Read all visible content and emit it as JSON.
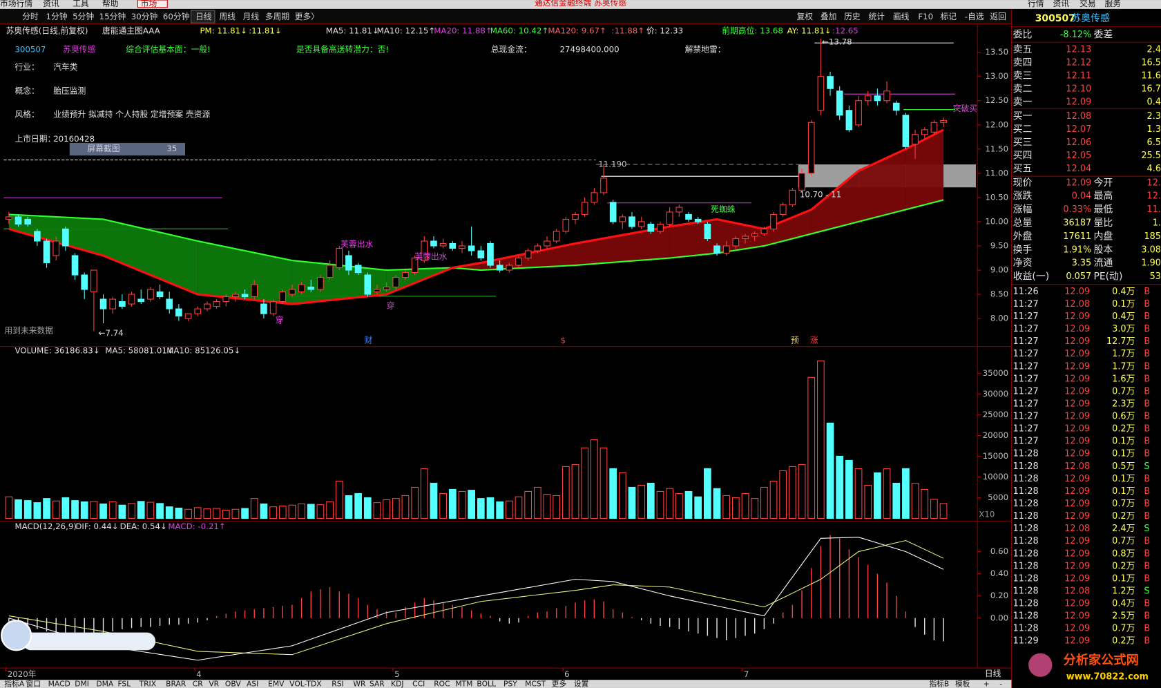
{
  "window": {
    "menu": [
      "市场行情",
      "资讯",
      "工具",
      "帮助",
      "市场"
    ],
    "title": "通达信金融终端 苏奥传感",
    "tabs": [
      "行情",
      "资讯",
      "交易",
      "服务"
    ]
  },
  "toolbar": {
    "periods": [
      "分时",
      "1分钟",
      "5分钟",
      "15分钟",
      "30分钟",
      "60分钟",
      "日线",
      "周线",
      "月线",
      "多周期",
      "更多〉"
    ],
    "tools": [
      "复权",
      "叠加",
      "历史",
      "统计",
      "画线",
      "F10",
      "标记",
      "-自选",
      "返回"
    ]
  },
  "info_bar": [
    "苏奥传感(日线,前复权)",
    "唐能通主图AAA",
    "PM: 11.81↓",
    ":11.81↓",
    "MA5: 11.81↓",
    "MA10: 12.15↑",
    "MA20: 11.88↑",
    "MA60: 10.42↑",
    "MA120: 9.67↑",
    ":11.88↑",
    "价: 12.33",
    "前期高位: 13.68",
    "AY: 11.81↓",
    ":12.65"
  ],
  "stock_info": {
    "code": "300507",
    "name": "苏奥传感",
    "assessment": "综合评估基本面：一般!",
    "potential": "是否具备高送转潜力：否!",
    "cashflow_label": "总现金流：",
    "cashflow": "27498400.000",
    "unlock_label": "解禁地雷：",
    "industry_label": "行业：",
    "industry": "汽车类",
    "concept_label": "概念：",
    "concept": "胎压监测",
    "style_label": "风格：",
    "style": "业绩预升 拟减持 个人持股 定增预案 壳资源",
    "listing_label": "上市日期：",
    "listing": "20160428",
    "screenshot_label": "屏幕截图",
    "screenshot_count": "35"
  },
  "price_chart": {
    "type": "candlestick",
    "ylim": [
      7.42,
      14.09
    ],
    "yticks": [
      {
        "value": 8,
        "label": "8.00"
      },
      {
        "value": 8.5,
        "label": "8.50"
      },
      {
        "value": 9,
        "label": "9.00"
      },
      {
        "value": 9.5,
        "label": "9.50"
      },
      {
        "value": 10,
        "label": "10.00"
      },
      {
        "value": 10.5,
        "label": "10.50"
      },
      {
        "value": 11,
        "label": "11.00"
      },
      {
        "value": 11.5,
        "label": "11.50"
      },
      {
        "value": 12,
        "label": "12.00"
      },
      {
        "value": 12.5,
        "label": "12.50"
      },
      {
        "value": 13,
        "label": "13.00"
      },
      {
        "value": 13.5,
        "label": "13.50"
      }
    ],
    "up_color": "#ff4040",
    "down_color": "#54ffff",
    "candles": [
      [
        10.05,
        10.2,
        9.95,
        10.1
      ],
      [
        10.1,
        10.15,
        9.9,
        9.95
      ],
      [
        10.05,
        10.1,
        9.9,
        9.95
      ],
      [
        9.8,
        9.85,
        9.5,
        9.6
      ],
      [
        9.6,
        9.65,
        9.05,
        9.15
      ],
      [
        9.3,
        9.7,
        9.2,
        9.6
      ],
      [
        9.85,
        9.9,
        9.4,
        9.5
      ],
      [
        9.3,
        9.35,
        8.8,
        8.9
      ],
      [
        8.9,
        8.95,
        8.4,
        8.6
      ],
      [
        8.55,
        9.0,
        7.74,
        9.0
      ],
      [
        8.4,
        8.5,
        7.9,
        8.2
      ],
      [
        8.2,
        8.45,
        8.1,
        8.4
      ],
      [
        8.35,
        8.5,
        8.2,
        8.25
      ],
      [
        8.3,
        8.55,
        8.25,
        8.5
      ],
      [
        8.4,
        8.6,
        8.3,
        8.35
      ],
      [
        8.4,
        8.65,
        8.35,
        8.6
      ],
      [
        8.55,
        8.7,
        8.4,
        8.45
      ],
      [
        8.4,
        8.55,
        8.1,
        8.2
      ],
      [
        8.2,
        8.3,
        7.95,
        8.05
      ],
      [
        8.0,
        8.1,
        7.95,
        8.1
      ],
      [
        8.1,
        8.25,
        8.05,
        8.2
      ],
      [
        8.2,
        8.35,
        8.15,
        8.3
      ],
      [
        8.25,
        8.4,
        8.2,
        8.35
      ],
      [
        8.35,
        8.5,
        8.25,
        8.45
      ],
      [
        8.45,
        8.55,
        8.35,
        8.5
      ],
      [
        8.5,
        8.6,
        8.4,
        8.45
      ],
      [
        8.45,
        8.8,
        8.4,
        8.7
      ],
      [
        8.3,
        8.4,
        8.0,
        8.1
      ],
      [
        8.1,
        8.4,
        8.05,
        8.35
      ],
      [
        8.35,
        8.6,
        8.3,
        8.55
      ],
      [
        8.5,
        8.7,
        8.45,
        8.6
      ],
      [
        8.55,
        8.75,
        8.5,
        8.7
      ],
      [
        8.65,
        8.8,
        8.55,
        8.6
      ],
      [
        8.6,
        8.9,
        8.55,
        8.85
      ],
      [
        8.85,
        9.2,
        8.8,
        9.1
      ],
      [
        9.05,
        9.5,
        9.0,
        9.45
      ],
      [
        9.3,
        9.4,
        8.9,
        9.0
      ],
      [
        9.1,
        9.15,
        8.9,
        8.95
      ],
      [
        8.9,
        8.95,
        8.45,
        8.5
      ],
      [
        8.55,
        8.7,
        8.5,
        8.6
      ],
      [
        8.6,
        8.75,
        8.55,
        8.65
      ],
      [
        8.65,
        8.9,
        8.6,
        8.85
      ],
      [
        8.85,
        9.0,
        8.8,
        8.95
      ],
      [
        8.95,
        9.3,
        8.9,
        9.25
      ],
      [
        9.2,
        9.7,
        9.15,
        9.6
      ],
      [
        9.6,
        9.7,
        9.45,
        9.5
      ],
      [
        9.5,
        9.65,
        9.45,
        9.55
      ],
      [
        9.55,
        9.6,
        9.4,
        9.45
      ],
      [
        9.45,
        9.6,
        9.35,
        9.5
      ],
      [
        9.5,
        9.9,
        9.3,
        9.4
      ],
      [
        9.4,
        9.5,
        9.2,
        9.25
      ],
      [
        9.55,
        9.6,
        9.05,
        9.1
      ],
      [
        9.1,
        9.2,
        8.95,
        9.0
      ],
      [
        9.0,
        9.15,
        8.95,
        9.1
      ],
      [
        9.1,
        9.3,
        9.05,
        9.25
      ],
      [
        9.25,
        9.45,
        9.2,
        9.4
      ],
      [
        9.4,
        9.55,
        9.35,
        9.5
      ],
      [
        9.5,
        9.7,
        9.45,
        9.6
      ],
      [
        9.6,
        9.85,
        9.55,
        9.8
      ],
      [
        9.8,
        10.1,
        9.75,
        10.05
      ],
      [
        10.05,
        10.2,
        9.95,
        10.15
      ],
      [
        10.15,
        10.5,
        10.1,
        10.4
      ],
      [
        10.4,
        10.7,
        10.35,
        10.6
      ],
      [
        10.6,
        11.19,
        10.55,
        10.9
      ],
      [
        10.4,
        10.45,
        9.95,
        10.0
      ],
      [
        10.0,
        10.15,
        9.85,
        10.1
      ],
      [
        10.1,
        10.2,
        9.85,
        9.9
      ],
      [
        9.9,
        10.1,
        9.85,
        10.0
      ],
      [
        9.95,
        10.0,
        9.75,
        9.8
      ],
      [
        9.8,
        10.0,
        9.75,
        9.95
      ],
      [
        9.95,
        10.3,
        9.9,
        10.2
      ],
      [
        10.2,
        10.35,
        10.1,
        10.3
      ],
      [
        10.15,
        10.2,
        10.0,
        10.05
      ],
      [
        10.05,
        10.1,
        9.95,
        10.0
      ],
      [
        9.95,
        10.0,
        9.6,
        9.65
      ],
      [
        9.5,
        9.55,
        9.3,
        9.35
      ],
      [
        9.35,
        9.6,
        9.3,
        9.5
      ],
      [
        9.5,
        9.7,
        9.45,
        9.65
      ],
      [
        9.65,
        9.75,
        9.55,
        9.7
      ],
      [
        9.7,
        9.8,
        9.6,
        9.75
      ],
      [
        9.75,
        9.9,
        9.7,
        9.85
      ],
      [
        9.85,
        10.2,
        9.8,
        10.15
      ],
      [
        10.15,
        10.4,
        10.1,
        10.35
      ],
      [
        10.35,
        10.7,
        10.3,
        10.65
      ],
      [
        10.65,
        11.1,
        10.6,
        11.0
      ],
      [
        11.0,
        12.1,
        10.95,
        12.05
      ],
      [
        12.3,
        13.78,
        12.2,
        13.0
      ],
      [
        13.0,
        13.1,
        12.6,
        12.75
      ],
      [
        12.7,
        12.8,
        12.1,
        12.2
      ],
      [
        12.3,
        12.4,
        11.85,
        11.9
      ],
      [
        12.0,
        12.6,
        11.95,
        12.5
      ],
      [
        12.5,
        12.7,
        12.4,
        12.6
      ],
      [
        12.6,
        12.75,
        12.4,
        12.5
      ],
      [
        12.5,
        12.9,
        12.45,
        12.7
      ],
      [
        12.45,
        12.5,
        12.2,
        12.3
      ],
      [
        12.2,
        12.25,
        11.5,
        11.55
      ],
      [
        11.6,
        11.9,
        11.3,
        11.8
      ],
      [
        11.8,
        11.95,
        11.7,
        11.9
      ],
      [
        11.85,
        12.1,
        11.8,
        12.05
      ],
      [
        12.05,
        12.15,
        11.95,
        12.09
      ]
    ],
    "ma_x": [
      0,
      10,
      20,
      30,
      40,
      47,
      50,
      60,
      70,
      75,
      80,
      85,
      90,
      95,
      99
    ],
    "ma_a": [
      9.85,
      9.3,
      8.5,
      8.3,
      8.5,
      9.05,
      9.15,
      9.55,
      9.9,
      10.05,
      9.85,
      10.25,
      11.05,
      11.5,
      11.9
    ],
    "ma_b": [
      10.15,
      10.05,
      9.6,
      9.2,
      9.0,
      9.05,
      9.0,
      9.1,
      9.25,
      9.35,
      9.5,
      9.75,
      10.0,
      10.25,
      10.45
    ],
    "annotations": [
      "←13.78",
      "11.190",
      "10.70 - 11",
      "←7.74",
      "芙蓉出水",
      "芙蓉出水",
      "死蜘蛛",
      "突破买",
      "穿",
      "穿",
      "用到未来数据",
      "财",
      "$",
      "预",
      "涨"
    ]
  },
  "volume_chart": {
    "type": "bar",
    "legend": [
      "VOLUME: 36186.83↓",
      "MA5: 58081.01↓",
      "MA10: 85126.05↓"
    ],
    "scale_label": "X10",
    "ylim": [
      0,
      41430
    ],
    "yticks": [
      5000,
      10000,
      15000,
      20000,
      25000,
      30000,
      35000
    ],
    "values": [
      5200,
      4500,
      4300,
      3800,
      4800,
      4200,
      5000,
      4300,
      4000,
      4100,
      3500,
      4000,
      3200,
      3600,
      4100,
      3900,
      3600,
      2800,
      2500,
      2200,
      2600,
      2300,
      2400,
      2000,
      2200,
      2400,
      4800,
      3500,
      2800,
      3000,
      3200,
      3500,
      3400,
      3300,
      4000,
      9000,
      5500,
      6000,
      5000,
      3800,
      4500,
      4800,
      5500,
      7500,
      12000,
      8500,
      6000,
      7000,
      6500,
      6800,
      4800,
      5000,
      4000,
      4200,
      5200,
      6500,
      7500,
      5800,
      5500,
      12500,
      13000,
      17000,
      19000,
      17000,
      12000,
      11000,
      7500,
      8000,
      8500,
      6500,
      7200,
      6000,
      6500,
      5200,
      12000,
      7200,
      5500,
      5000,
      6000,
      4800,
      7500,
      9000,
      11500,
      12500,
      13000,
      34000,
      38000,
      23000,
      15000,
      14000,
      12000,
      8000,
      11000,
      12000,
      8500,
      12000,
      8500,
      7000,
      4600,
      3600
    ]
  },
  "macd_chart": {
    "type": "bar",
    "legend": [
      "MACD(12,26,9)",
      "DIF: 0.44↓",
      "DEA: 0.54↓",
      "MACD: -0.21↑"
    ],
    "ylim": [
      -0.437,
      0.873
    ],
    "yticks": [
      {
        "value": 0,
        "label": "0.00"
      },
      {
        "value": 0.2,
        "label": "0.20"
      },
      {
        "value": 0.4,
        "label": "0.40"
      },
      {
        "value": 0.6,
        "label": "0.60"
      }
    ],
    "up_color": "#ff4040",
    "down_color": "#e8e8e8",
    "values": [
      -0.05,
      -0.06,
      -0.08,
      -0.1,
      -0.12,
      -0.13,
      -0.14,
      -0.15,
      -0.16,
      -0.14,
      -0.13,
      -0.12,
      -0.1,
      -0.09,
      -0.08,
      -0.08,
      -0.07,
      -0.06,
      -0.06,
      -0.05,
      -0.04,
      -0.02,
      0.02,
      0.04,
      0.06,
      0.07,
      0.08,
      0.09,
      0.1,
      0.11,
      0.12,
      0.18,
      0.24,
      0.26,
      0.28,
      0.24,
      0.22,
      0.18,
      0.12,
      0.08,
      0.06,
      0.05,
      0.1,
      0.14,
      0.18,
      0.16,
      0.14,
      0.12,
      0.1,
      0.07,
      0.04,
      0.02,
      -0.03,
      -0.05,
      -0.04,
      0.02,
      0.05,
      0.06,
      0.09,
      0.11,
      0.14,
      0.16,
      0.17,
      0.15,
      0.08,
      0.05,
      0.01,
      -0.02,
      -0.05,
      -0.07,
      -0.08,
      -0.1,
      -0.12,
      -0.14,
      -0.16,
      -0.18,
      -0.2,
      -0.18,
      -0.16,
      -0.14,
      -0.1,
      -0.05,
      0.05,
      0.12,
      0.25,
      0.45,
      0.65,
      0.75,
      0.72,
      0.62,
      0.55,
      0.48,
      0.4,
      0.32,
      0.2,
      0.06,
      -0.08,
      -0.15,
      -0.2,
      -0.21
    ],
    "line_x": [
      0,
      10,
      20,
      30,
      40,
      50,
      60,
      64,
      70,
      80,
      86,
      90,
      95,
      99
    ],
    "dif": [
      0.0,
      -0.25,
      -0.38,
      -0.25,
      0.05,
      0.2,
      0.35,
      0.33,
      0.2,
      0.02,
      0.72,
      0.73,
      0.6,
      0.44
    ],
    "dea": [
      0.02,
      -0.12,
      -0.3,
      -0.33,
      -0.05,
      0.15,
      0.25,
      0.3,
      0.28,
      0.1,
      0.35,
      0.6,
      0.7,
      0.54
    ]
  },
  "x_axis": {
    "labels": [
      "2020年",
      null,
      null,
      null,
      null,
      null,
      null,
      null,
      null,
      null,
      null,
      null,
      null,
      null,
      null,
      null,
      null,
      null,
      null,
      null,
      "4",
      null,
      null,
      null,
      null,
      null,
      null,
      null,
      null,
      null,
      null,
      null,
      null,
      null,
      null,
      null,
      null,
      null,
      null,
      null,
      null,
      "5",
      null,
      null,
      null,
      null,
      null,
      null,
      null,
      null,
      null,
      null,
      null,
      null,
      null,
      null,
      null,
      null,
      null,
      "6",
      null,
      null,
      null,
      null,
      null,
      null,
      null,
      null,
      null,
      null,
      null,
      null,
      null,
      null,
      null,
      null,
      null,
      null,
      "7",
      null,
      null,
      null,
      null,
      null,
      null,
      null,
      null,
      null,
      null,
      null,
      null,
      null,
      null,
      null,
      null,
      null,
      null,
      null,
      null,
      null
    ],
    "period": "日线"
  },
  "indicator_tabs": [
    "指标A",
    "窗口",
    "MACD",
    "DMI",
    "DMA",
    "FSL",
    "TRIX",
    "BRAR",
    "CR",
    "VR",
    "OBV",
    "ASI",
    "EMV",
    "VOL-TDX",
    "RSI",
    "WR",
    "SAR",
    "KDJ",
    "CCI",
    "ROC",
    "MTM",
    "BOLL",
    "PSY",
    "MCST",
    "更多",
    "设置"
  ],
  "indicator_tabs_right": [
    "指标B",
    "模板",
    "+",
    "-"
  ],
  "quote_panel": {
    "code": "300507",
    "name": "苏奥传感",
    "ratio_label": "委比",
    "ratio": "-8.12%",
    "diff_label": "委差",
    "asks": [
      [
        "卖五",
        "12.13",
        "2.4"
      ],
      [
        "卖四",
        "12.12",
        "16.5"
      ],
      [
        "卖三",
        "12.11",
        "11.6"
      ],
      [
        "卖二",
        "12.10",
        "16.7"
      ],
      [
        "卖一",
        "12.09",
        "0.4"
      ]
    ],
    "bids": [
      [
        "买一",
        "12.08",
        "2.3"
      ],
      [
        "买二",
        "12.07",
        "1.3"
      ],
      [
        "买三",
        "12.06",
        "6.5"
      ],
      [
        "买四",
        "12.05",
        "25.5"
      ],
      [
        "买五",
        "12.04",
        "4.6"
      ]
    ],
    "stats": [
      [
        "现价",
        "12.09",
        "今开",
        "12."
      ],
      [
        "涨跌",
        "0.04",
        "最高",
        "12."
      ],
      [
        "涨幅",
        "0.33%",
        "最低",
        "11."
      ],
      [
        "总量",
        "36187",
        "量比",
        "1."
      ],
      [
        "外盘",
        "17611",
        "内盘",
        "185"
      ],
      [
        "换手",
        "1.91%",
        "股本",
        "3.08"
      ],
      [
        "净资",
        "3.35",
        "流通",
        "1.90"
      ],
      [
        "收益(一)",
        "0.057",
        "PE(动)",
        "53"
      ]
    ],
    "trades": [
      [
        "11:26",
        "12.09",
        "0.4万",
        "B"
      ],
      [
        "11:27",
        "12.08",
        "0.1万",
        "B"
      ],
      [
        "11:27",
        "12.09",
        "0.4万",
        "B"
      ],
      [
        "11:27",
        "12.09",
        "3.0万",
        "B"
      ],
      [
        "11:27",
        "12.09",
        "12.7万",
        "B"
      ],
      [
        "11:27",
        "12.09",
        "1.7万",
        "B"
      ],
      [
        "11:27",
        "12.09",
        "1.7万",
        "B"
      ],
      [
        "11:27",
        "12.09",
        "1.6万",
        "B"
      ],
      [
        "11:27",
        "12.09",
        "0.7万",
        "B"
      ],
      [
        "11:27",
        "12.09",
        "2.3万",
        "B"
      ],
      [
        "11:27",
        "12.09",
        "0.6万",
        "B"
      ],
      [
        "11:27",
        "12.09",
        "0.2万",
        "B"
      ],
      [
        "11:27",
        "12.09",
        "0.1万",
        "B"
      ],
      [
        "11:28",
        "12.09",
        "0.1万",
        "B"
      ],
      [
        "11:28",
        "12.08",
        "0.5万",
        "S"
      ],
      [
        "11:28",
        "12.09",
        "0.1万",
        "B"
      ],
      [
        "11:28",
        "12.09",
        "0.1万",
        "B"
      ],
      [
        "11:28",
        "12.09",
        "0.7万",
        "B"
      ],
      [
        "11:28",
        "12.09",
        "0.2万",
        "B"
      ],
      [
        "11:28",
        "12.08",
        "2.4万",
        "S"
      ],
      [
        "11:28",
        "12.09",
        "0.7万",
        "B"
      ],
      [
        "11:28",
        "12.09",
        "0.8万",
        "B"
      ],
      [
        "11:28",
        "12.09",
        "0.2万",
        "B"
      ],
      [
        "11:28",
        "12.09",
        "0.1万",
        "B"
      ],
      [
        "11:28",
        "12.08",
        "1.2万",
        "S"
      ],
      [
        "11:28",
        "12.09",
        "0.4万",
        "B"
      ],
      [
        "11:28",
        "12.09",
        "2.5万",
        "B"
      ],
      [
        "11:28",
        "12.09",
        "0.7万",
        "B"
      ],
      [
        "11:29",
        "12.09",
        "0.2万",
        "B"
      ]
    ]
  },
  "watermark": {
    "name": "分析家公式网",
    "url": "www.70822.com"
  }
}
